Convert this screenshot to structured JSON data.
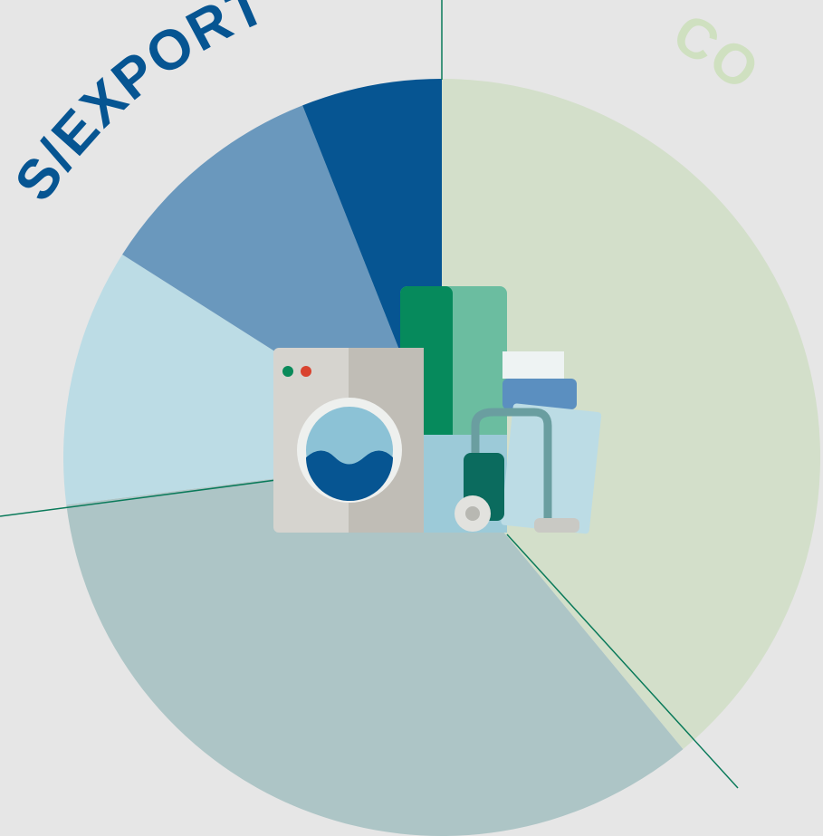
{
  "chart_data": {
    "type": "pie",
    "values": [
      39,
      34,
      11,
      10,
      6
    ],
    "colors": [
      "#d3dfca",
      "#adc5c6",
      "#bcdce5",
      "#6a98bd",
      "#065592"
    ],
    "annotations": [
      "S/EXPORT",
      "CO"
    ]
  }
}
